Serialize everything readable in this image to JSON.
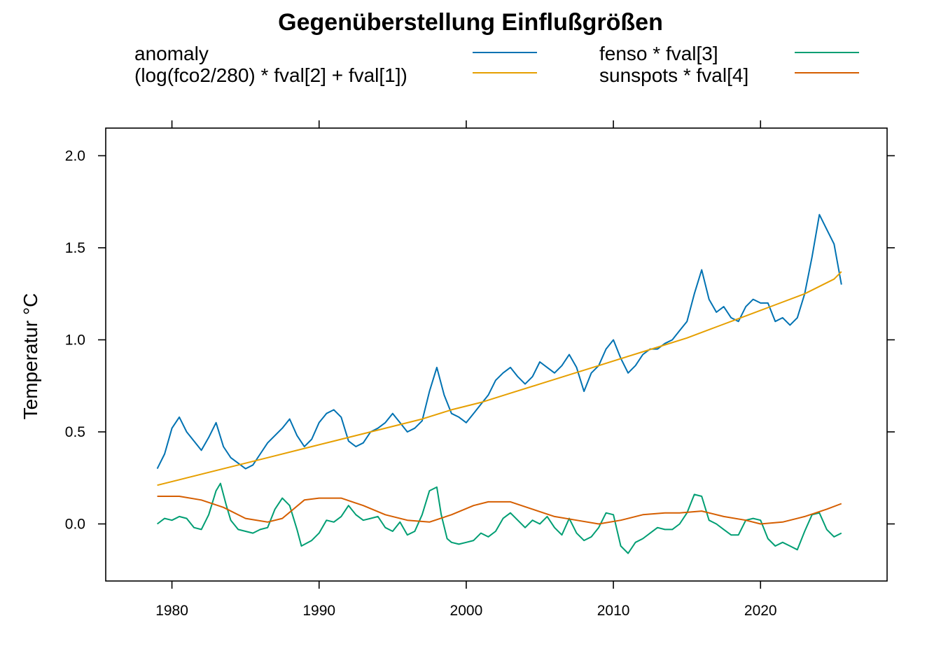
{
  "chart_data": {
    "type": "line",
    "title": "Gegenüberstellung Einflußgrößen",
    "xlabel": "",
    "ylabel": "Temperatur °C",
    "xlim": [
      1975.5,
      2028.6
    ],
    "ylim": [
      -0.31,
      2.15
    ],
    "x_ticks": [
      "1980",
      "1990",
      "2000",
      "2010",
      "2020"
    ],
    "x_tick_values": [
      1980,
      1990,
      2000,
      2010,
      2020
    ],
    "y_ticks": [
      "0.0",
      "0.5",
      "1.0",
      "1.5",
      "2.0"
    ],
    "y_tick_values": [
      0,
      0.5,
      1.0,
      1.5,
      2.0
    ],
    "grid": false,
    "legend_placement": "top",
    "series": [
      {
        "name": "anomaly",
        "color": "#0072B2",
        "x": [
          1979.0,
          1979.5,
          1980.0,
          1980.5,
          1981.0,
          1981.5,
          1982.0,
          1982.5,
          1983.0,
          1983.5,
          1984.0,
          1984.5,
          1985.0,
          1985.5,
          1986.0,
          1986.5,
          1987.0,
          1987.5,
          1988.0,
          1988.5,
          1989.0,
          1989.5,
          1990.0,
          1990.5,
          1991.0,
          1991.5,
          1992.0,
          1992.5,
          1993.0,
          1993.5,
          1994.0,
          1994.5,
          1995.0,
          1995.5,
          1996.0,
          1996.5,
          1997.0,
          1997.5,
          1998.0,
          1998.5,
          1999.0,
          1999.5,
          2000.0,
          2000.5,
          2001.0,
          2001.5,
          2002.0,
          2002.5,
          2003.0,
          2003.5,
          2004.0,
          2004.5,
          2005.0,
          2005.5,
          2006.0,
          2006.5,
          2007.0,
          2007.5,
          2008.0,
          2008.5,
          2009.0,
          2009.5,
          2010.0,
          2010.5,
          2011.0,
          2011.5,
          2012.0,
          2012.5,
          2013.0,
          2013.5,
          2014.0,
          2014.5,
          2015.0,
          2015.5,
          2016.0,
          2016.5,
          2017.0,
          2017.5,
          2018.0,
          2018.5,
          2019.0,
          2019.5,
          2020.0,
          2020.5,
          2021.0,
          2021.5,
          2022.0,
          2022.5,
          2023.0,
          2023.5,
          2024.0,
          2024.5,
          2025.0,
          2025.5
        ],
        "values": [
          0.3,
          0.38,
          0.52,
          0.58,
          0.5,
          0.45,
          0.4,
          0.47,
          0.55,
          0.42,
          0.36,
          0.33,
          0.3,
          0.32,
          0.38,
          0.44,
          0.48,
          0.52,
          0.57,
          0.48,
          0.42,
          0.46,
          0.55,
          0.6,
          0.62,
          0.58,
          0.45,
          0.42,
          0.44,
          0.5,
          0.52,
          0.55,
          0.6,
          0.55,
          0.5,
          0.52,
          0.56,
          0.72,
          0.85,
          0.7,
          0.6,
          0.58,
          0.55,
          0.6,
          0.65,
          0.7,
          0.78,
          0.82,
          0.85,
          0.8,
          0.76,
          0.8,
          0.88,
          0.85,
          0.82,
          0.86,
          0.92,
          0.85,
          0.72,
          0.82,
          0.86,
          0.95,
          1.0,
          0.9,
          0.82,
          0.86,
          0.92,
          0.95,
          0.95,
          0.98,
          1.0,
          1.05,
          1.1,
          1.25,
          1.38,
          1.22,
          1.15,
          1.18,
          1.12,
          1.1,
          1.18,
          1.22,
          1.2,
          1.2,
          1.1,
          1.12,
          1.08,
          1.12,
          1.25,
          1.45,
          1.68,
          1.6,
          1.52,
          1.3
        ]
      },
      {
        "name": "(log(fco2/280) * fval[2] + fval[1])",
        "color": "#E69F00",
        "x": [
          1979.0,
          1981.0,
          1983.0,
          1985.0,
          1987.0,
          1989.0,
          1991.0,
          1993.0,
          1995.0,
          1997.0,
          1999.0,
          2001.0,
          2003.0,
          2005.0,
          2007.0,
          2009.0,
          2011.0,
          2013.0,
          2015.0,
          2017.0,
          2019.0,
          2021.0,
          2023.0,
          2025.0,
          2025.5
        ],
        "values": [
          0.21,
          0.25,
          0.29,
          0.33,
          0.37,
          0.41,
          0.45,
          0.49,
          0.53,
          0.57,
          0.62,
          0.66,
          0.71,
          0.76,
          0.81,
          0.86,
          0.91,
          0.96,
          1.01,
          1.07,
          1.13,
          1.19,
          1.25,
          1.33,
          1.37
        ]
      },
      {
        "name": "fenso * fval[3]",
        "color": "#009E73",
        "x": [
          1979.0,
          1979.5,
          1980.0,
          1980.5,
          1981.0,
          1981.5,
          1982.0,
          1982.5,
          1983.0,
          1983.3,
          1983.7,
          1984.0,
          1984.5,
          1985.0,
          1985.5,
          1986.0,
          1986.5,
          1987.0,
          1987.5,
          1988.0,
          1988.5,
          1988.8,
          1989.5,
          1990.0,
          1990.5,
          1991.0,
          1991.5,
          1992.0,
          1992.5,
          1993.0,
          1993.5,
          1994.0,
          1994.5,
          1995.0,
          1995.5,
          1996.0,
          1996.5,
          1997.0,
          1997.5,
          1998.0,
          1998.3,
          1998.7,
          1999.0,
          1999.5,
          2000.0,
          2000.5,
          2001.0,
          2001.5,
          2002.0,
          2002.5,
          2003.0,
          2003.5,
          2004.0,
          2004.5,
          2005.0,
          2005.5,
          2006.0,
          2006.5,
          2007.0,
          2007.5,
          2008.0,
          2008.5,
          2009.0,
          2009.5,
          2010.0,
          2010.5,
          2011.0,
          2011.5,
          2012.0,
          2012.5,
          2013.0,
          2013.5,
          2014.0,
          2014.5,
          2015.0,
          2015.5,
          2016.0,
          2016.5,
          2017.0,
          2017.5,
          2018.0,
          2018.5,
          2019.0,
          2019.5,
          2020.0,
          2020.5,
          2021.0,
          2021.5,
          2022.0,
          2022.5,
          2023.0,
          2023.5,
          2024.0,
          2024.5,
          2025.0,
          2025.5
        ],
        "values": [
          0.0,
          0.03,
          0.02,
          0.04,
          0.03,
          -0.02,
          -0.03,
          0.05,
          0.18,
          0.22,
          0.1,
          0.02,
          -0.03,
          -0.04,
          -0.05,
          -0.03,
          -0.02,
          0.08,
          0.14,
          0.1,
          -0.03,
          -0.12,
          -0.09,
          -0.05,
          0.02,
          0.01,
          0.04,
          0.1,
          0.05,
          0.02,
          0.03,
          0.04,
          -0.02,
          -0.04,
          0.01,
          -0.06,
          -0.04,
          0.05,
          0.18,
          0.2,
          0.05,
          -0.08,
          -0.1,
          -0.11,
          -0.1,
          -0.09,
          -0.05,
          -0.07,
          -0.04,
          0.03,
          0.06,
          0.02,
          -0.02,
          0.02,
          0.0,
          0.04,
          -0.02,
          -0.06,
          0.03,
          -0.05,
          -0.09,
          -0.07,
          -0.02,
          0.06,
          0.05,
          -0.12,
          -0.16,
          -0.1,
          -0.08,
          -0.05,
          -0.02,
          -0.03,
          -0.03,
          0.0,
          0.06,
          0.16,
          0.15,
          0.02,
          0.0,
          -0.03,
          -0.06,
          -0.06,
          0.02,
          0.03,
          0.02,
          -0.08,
          -0.12,
          -0.1,
          -0.12,
          -0.14,
          -0.04,
          0.05,
          0.06,
          -0.03,
          -0.07,
          -0.05
        ]
      },
      {
        "name": "sunspots * fval[4]",
        "color": "#D55E00",
        "x": [
          1979.0,
          1980.5,
          1982.0,
          1983.5,
          1985.0,
          1986.5,
          1987.5,
          1989.0,
          1990.0,
          1991.5,
          1993.0,
          1994.5,
          1996.0,
          1997.5,
          1999.0,
          2000.5,
          2001.5,
          2003.0,
          2004.5,
          2006.0,
          2007.5,
          2009.0,
          2010.5,
          2012.0,
          2013.5,
          2014.5,
          2016.0,
          2017.5,
          2019.0,
          2020.0,
          2021.5,
          2023.0,
          2024.5,
          2025.5
        ],
        "values": [
          0.15,
          0.15,
          0.13,
          0.09,
          0.03,
          0.01,
          0.03,
          0.13,
          0.14,
          0.14,
          0.1,
          0.05,
          0.02,
          0.01,
          0.05,
          0.1,
          0.12,
          0.12,
          0.08,
          0.04,
          0.02,
          0.0,
          0.02,
          0.05,
          0.06,
          0.06,
          0.07,
          0.04,
          0.02,
          0.0,
          0.01,
          0.04,
          0.08,
          0.11
        ]
      }
    ]
  }
}
